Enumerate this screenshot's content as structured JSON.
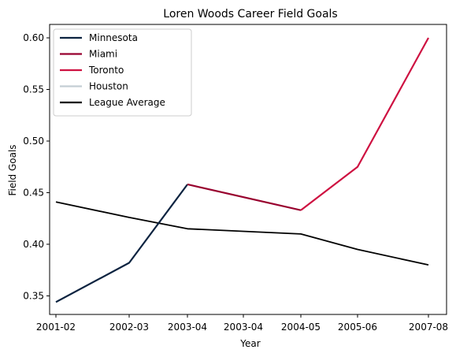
{
  "chart_data": {
    "type": "line",
    "title": "Loren Woods Career Field Goals",
    "xlabel": "Year",
    "ylabel": "Field Goals",
    "x_tick_labels": [
      "2001-02",
      "2002-03",
      "2003-04",
      "2003-04",
      "2004-05",
      "2005-06",
      "2007-08"
    ],
    "y_ticks": [
      0.35,
      0.4,
      0.45,
      0.5,
      0.55,
      0.6
    ],
    "y_tick_labels": [
      "0.35",
      "0.40",
      "0.45",
      "0.50",
      "0.55",
      "0.60"
    ],
    "ylim": [
      0.332,
      0.613
    ],
    "grid": false,
    "legend_position": "top-left",
    "series": [
      {
        "name": "Minnesota",
        "color": "#0C2340",
        "points": [
          {
            "x": "2001-02",
            "y": 0.344
          },
          {
            "x": "2002-03",
            "y": 0.382
          },
          {
            "x": "2003-04",
            "y": 0.458
          }
        ]
      },
      {
        "name": "Miami",
        "color": "#98002E",
        "points": [
          {
            "x": "2003-04",
            "y": 0.458
          },
          {
            "x": "2004-05",
            "y": 0.433
          }
        ]
      },
      {
        "name": "Toronto",
        "color": "#CE1141",
        "points": [
          {
            "x": "2004-05",
            "y": 0.433
          },
          {
            "x": "2005-06",
            "y": 0.475
          },
          {
            "x": "2007-08",
            "y": 0.6
          }
        ]
      },
      {
        "name": "Houston",
        "color": "#C4CED4",
        "points": []
      },
      {
        "name": "League Average",
        "color": "#000000",
        "points": [
          {
            "x": "2001-02",
            "y": 0.441
          },
          {
            "x": "2002-03",
            "y": 0.426
          },
          {
            "x": "2003-04",
            "y": 0.415
          },
          {
            "x": "2004-05",
            "y": 0.41
          },
          {
            "x": "2005-06",
            "y": 0.395
          },
          {
            "x": "2007-08",
            "y": 0.38
          }
        ]
      }
    ]
  }
}
